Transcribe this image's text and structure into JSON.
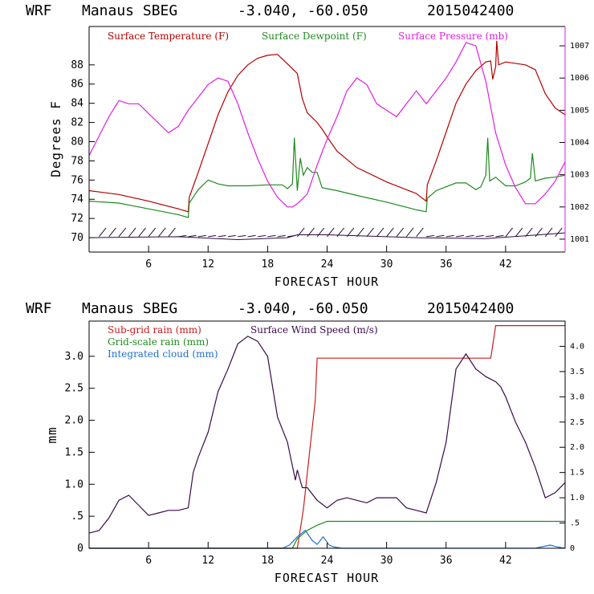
{
  "header": {
    "model": "WRF",
    "station": "Manaus SBEG",
    "coords": "-3.040, -60.050",
    "init": "2015042400"
  },
  "colors": {
    "temperature": "#b30000",
    "dewpoint": "#1f8a1f",
    "pressure": "#e01ee0",
    "wind": "#3a0a4a",
    "subgrid_rain": "#c81e1e",
    "gridscale_rain": "#1f8a1f",
    "cloud": "#1f6fcf",
    "barbs": "#2a0a3a"
  },
  "chart_data": [
    {
      "type": "line",
      "title": "WRF   Manaus SBEG   -3.040, -60.050  2015042400",
      "xlabel": "FORECAST HOUR",
      "ylabel": "Degrees F",
      "xlim": [
        0,
        48
      ],
      "ylim": [
        68.5,
        92
      ],
      "y2lim": [
        1000.6,
        1007.6
      ],
      "xticks": [
        6,
        12,
        18,
        24,
        30,
        36,
        42
      ],
      "yticks": [
        70,
        72,
        74,
        76,
        78,
        80,
        82,
        84,
        86,
        88
      ],
      "y2ticks": [
        1001,
        1002,
        1003,
        1004,
        1005,
        1006,
        1007
      ],
      "legend": [
        "Surface Temperature (F)",
        "Surface Dewpoint (F)",
        "Surface Pressure (mb)"
      ],
      "series": [
        {
          "name": "Surface Temperature (F)",
          "axis": "left",
          "x": [
            0,
            3,
            6,
            9,
            10,
            10.1,
            11,
            12,
            13,
            14,
            15,
            16,
            17,
            18,
            19,
            19.5,
            20,
            21,
            21.5,
            22,
            22.5,
            23,
            23.5,
            24,
            25,
            27,
            30,
            33,
            34,
            34.1,
            35,
            36,
            37,
            38,
            39,
            40,
            40.5,
            40.7,
            41,
            41.1,
            41.3,
            42,
            44,
            45,
            46,
            47,
            48
          ],
          "y": [
            74.9,
            74.5,
            73.8,
            73.0,
            72.7,
            74.2,
            76.8,
            79.8,
            82.8,
            85.2,
            86.9,
            88.0,
            88.7,
            89.0,
            89.1,
            88.6,
            88.1,
            87.1,
            84.5,
            83.0,
            82.5,
            82.0,
            81.3,
            80.5,
            79.0,
            77.3,
            75.8,
            74.6,
            73.8,
            75.5,
            78.0,
            81.0,
            84.0,
            86.0,
            87.4,
            88.3,
            88.4,
            86.5,
            87.8,
            90.5,
            88.0,
            88.3,
            88.0,
            87.5,
            85.0,
            83.5,
            82.8
          ]
        },
        {
          "name": "Surface Dewpoint (F)",
          "axis": "left",
          "x": [
            0,
            3,
            6,
            9,
            10,
            10.1,
            11,
            12,
            13,
            14,
            16,
            18,
            19.5,
            20,
            20.5,
            20.7,
            21,
            21.3,
            21.6,
            22,
            22.5,
            23,
            23.5,
            24,
            25,
            27,
            30,
            33,
            34,
            34.1,
            35,
            36,
            37,
            38,
            39,
            39.5,
            40,
            40.2,
            40.4,
            41,
            42,
            43,
            44,
            44.5,
            44.7,
            45,
            46,
            47,
            48
          ],
          "y": [
            73.8,
            73.6,
            73.0,
            72.4,
            72.1,
            73.6,
            75.0,
            76.0,
            75.6,
            75.4,
            75.4,
            75.5,
            75.5,
            75.1,
            75.6,
            80.4,
            74.9,
            78.3,
            76.5,
            77.3,
            76.8,
            76.8,
            75.2,
            75.1,
            74.9,
            74.4,
            73.7,
            72.9,
            72.7,
            74.1,
            74.9,
            75.3,
            75.7,
            75.7,
            75.0,
            75.3,
            76.5,
            80.4,
            75.9,
            76.3,
            75.4,
            75.4,
            75.8,
            76.2,
            78.8,
            75.9,
            76.2,
            76.3,
            76.5
          ]
        },
        {
          "name": "Surface Pressure (mb)",
          "axis": "right",
          "x": [
            0,
            1,
            2,
            3,
            4,
            5,
            6,
            7,
            8,
            9,
            10,
            11,
            12,
            13,
            14,
            15,
            16,
            17,
            18,
            19,
            20,
            20.5,
            21,
            22,
            23,
            24,
            25,
            26,
            27,
            28,
            29,
            30,
            31,
            32,
            33,
            34,
            35,
            36,
            37,
            38,
            39,
            40,
            41,
            42,
            43,
            44,
            45,
            46,
            47,
            48
          ],
          "y": [
            1003.6,
            1004.2,
            1004.8,
            1005.3,
            1005.2,
            1005.2,
            1004.9,
            1004.6,
            1004.3,
            1004.5,
            1005.0,
            1005.4,
            1005.8,
            1006.0,
            1005.9,
            1005.2,
            1004.3,
            1003.5,
            1002.8,
            1002.3,
            1002.0,
            1002.0,
            1002.1,
            1002.4,
            1003.3,
            1004.1,
            1004.8,
            1005.6,
            1006.0,
            1005.8,
            1005.2,
            1005.0,
            1004.8,
            1005.2,
            1005.6,
            1005.2,
            1005.6,
            1006.0,
            1006.5,
            1007.1,
            1007.0,
            1005.9,
            1004.3,
            1003.3,
            1002.6,
            1002.1,
            1002.1,
            1002.4,
            1002.8,
            1003.4
          ]
        }
      ]
    },
    {
      "type": "line",
      "title": "WRF   Manaus SBEG   -3.040, -60.050  2015042400",
      "xlabel": "FORECAST HOUR",
      "ylabel": "mm",
      "xlim": [
        0,
        48
      ],
      "ylim": [
        0,
        3.55
      ],
      "y2lim": [
        0,
        4.5
      ],
      "xticks": [
        6,
        12,
        18,
        24,
        30,
        36,
        42
      ],
      "yticks": [
        0,
        0.5,
        1.0,
        1.5,
        2.0,
        2.5,
        3.0
      ],
      "ytick_labels": [
        "0",
        ".5",
        "1.0",
        "1.5",
        "2.0",
        "2.5",
        "3.0"
      ],
      "y2ticks": [
        0,
        0.5,
        1.0,
        1.5,
        2.0,
        2.5,
        3.0,
        3.5,
        4.0
      ],
      "y2tick_labels": [
        "0",
        ".5",
        "1.0",
        "1.5",
        "2.0",
        "2.5",
        "3.0",
        "3.5",
        "4.0"
      ],
      "legend": [
        "Sub-grid rain (mm)",
        "Surface Wind Speed (m/s)",
        "Grid-scale rain (mm)",
        "Integrated cloud (mm)"
      ],
      "series": [
        {
          "name": "Sub-grid rain (mm)",
          "axis": "left",
          "x": [
            0,
            21,
            21.6,
            22.3,
            22.8,
            23,
            40.5,
            40.6,
            41,
            48
          ],
          "y": [
            0,
            0,
            0.6,
            1.6,
            2.3,
            2.97,
            2.97,
            3.07,
            3.48,
            3.48
          ]
        },
        {
          "name": "Grid-scale rain (mm)",
          "axis": "left",
          "x": [
            0,
            20.5,
            21,
            22,
            23,
            24,
            48
          ],
          "y": [
            0,
            0,
            0.15,
            0.28,
            0.36,
            0.42,
            0.42
          ]
        },
        {
          "name": "Integrated cloud (mm)",
          "axis": "left",
          "x": [
            0,
            19.5,
            20.2,
            21,
            21.8,
            22.5,
            23,
            23.6,
            24.2,
            24.7,
            25.5,
            45,
            46.5,
            47.2,
            48
          ],
          "y": [
            0,
            0,
            0.05,
            0.18,
            0.28,
            0.12,
            0.06,
            0.18,
            0.05,
            0.02,
            0,
            0,
            0.05,
            0.02,
            0
          ]
        },
        {
          "name": "Surface Wind Speed (m/s)",
          "axis": "right",
          "x": [
            0,
            1,
            2,
            3,
            4,
            5,
            6,
            7,
            8,
            9,
            10,
            10.5,
            11,
            12,
            13,
            14,
            15,
            16,
            17,
            18,
            19,
            20,
            20.8,
            21,
            21.5,
            22,
            23,
            24,
            25,
            26,
            27,
            28,
            29,
            30,
            31,
            32,
            33,
            34,
            35,
            36,
            37,
            38,
            39,
            40,
            41,
            41.5,
            42,
            43,
            44,
            45,
            46,
            47,
            48
          ],
          "y": [
            0.3,
            0.35,
            0.6,
            0.95,
            1.05,
            0.85,
            0.65,
            0.7,
            0.75,
            0.75,
            0.8,
            1.5,
            1.8,
            2.3,
            3.1,
            3.55,
            4.05,
            4.2,
            4.1,
            3.8,
            2.6,
            2.1,
            1.35,
            1.55,
            1.2,
            1.2,
            0.95,
            0.8,
            0.95,
            1.0,
            0.95,
            0.9,
            1.0,
            1.0,
            1.0,
            0.8,
            0.75,
            0.7,
            1.3,
            2.1,
            3.55,
            3.85,
            3.55,
            3.4,
            3.3,
            3.2,
            3.0,
            2.5,
            2.1,
            1.6,
            1.0,
            1.1,
            1.3
          ]
        }
      ]
    }
  ]
}
